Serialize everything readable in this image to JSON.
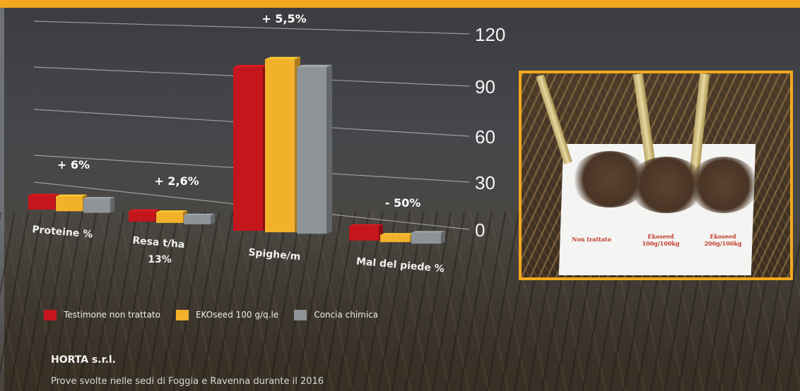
{
  "chart_data": {
    "type": "bar",
    "categories": [
      "Proteine %",
      "Resa t/ha",
      "Spighe/m",
      "Mal del piede %"
    ],
    "category_sublabels": [
      "",
      "13%",
      "",
      ""
    ],
    "annotations": [
      "+ 6%",
      "+ 2,6%",
      "+ 5,5%",
      "- 50%"
    ],
    "series": [
      {
        "name": "Testimone non trattato",
        "color": "#c4161c",
        "values": [
          12.5,
          6.5,
          103,
          8
        ]
      },
      {
        "name": "EKOseed 100 g/q.le",
        "color": "#f2b12a",
        "values": [
          13.3,
          6.7,
          109,
          4
        ]
      },
      {
        "name": "Concia chimica",
        "color": "#8d9397",
        "values": [
          12.5,
          5.5,
          105,
          6
        ]
      }
    ],
    "yticks": [
      0,
      30,
      60,
      90,
      120
    ],
    "ylim": [
      0,
      120
    ],
    "grid": true,
    "legend": "bottom-left"
  },
  "footer": {
    "company": "HORTA s.r.l.",
    "note": "Prove svolte nelle sedi di Foggia e Ravenna durante il 2016"
  },
  "photo": {
    "labels": [
      "Non trattato",
      "Ekoseed 100g/100kg",
      "Ekoseed 200g/100kg"
    ]
  },
  "colors": {
    "accent": "#f2a81e"
  }
}
